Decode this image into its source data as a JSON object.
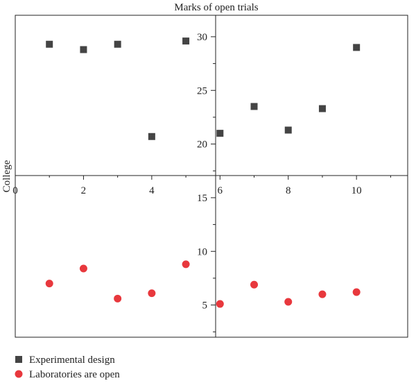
{
  "chart_data": {
    "type": "scatter",
    "title": "Marks of open trials",
    "ylabel": "College",
    "xlim": [
      0,
      11.5
    ],
    "ylim": [
      2,
      32
    ],
    "x_ticks": [
      0,
      2,
      4,
      6,
      8,
      10
    ],
    "y_ticks": [
      5,
      10,
      15,
      20,
      25,
      30
    ],
    "grid": false,
    "legend_position": "bottom-left",
    "series": [
      {
        "name": "Experimental design",
        "marker": "square",
        "color": "#444444",
        "x": [
          1,
          2,
          3,
          4,
          5,
          6,
          7,
          8,
          9,
          10
        ],
        "y": [
          29.3,
          28.8,
          29.3,
          20.7,
          29.6,
          21.0,
          23.5,
          21.3,
          23.3,
          29.0
        ]
      },
      {
        "name": "Laboratories are open",
        "marker": "circle",
        "color": "#e8383d",
        "x": [
          1,
          2,
          3,
          4,
          5,
          6,
          7,
          8,
          9,
          10
        ],
        "y": [
          7.0,
          8.4,
          5.6,
          6.1,
          8.8,
          5.1,
          6.9,
          5.3,
          6.0,
          6.2
        ]
      }
    ]
  }
}
